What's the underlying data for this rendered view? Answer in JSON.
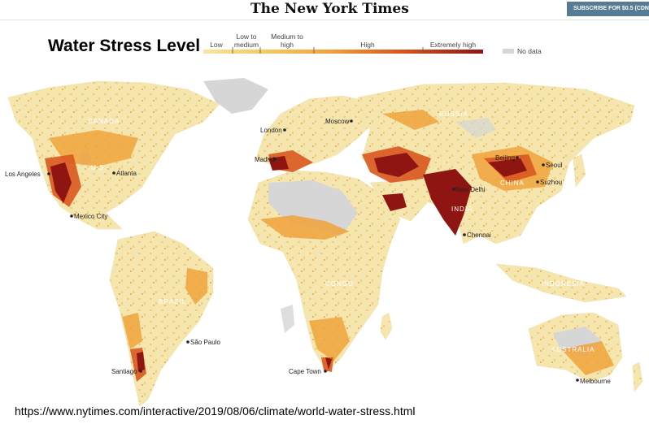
{
  "masthead": {
    "logo": "The New York Times",
    "subscribe": "SUBSCRIBE FOR $0.5 (CDN"
  },
  "title": "Water Stress Level",
  "legend": {
    "categories": [
      {
        "label": "Low",
        "color": "#f6e6a6"
      },
      {
        "label": "Low to medium",
        "color": "#f4cf6a"
      },
      {
        "label": "Medium to high",
        "color": "#f0a33c"
      },
      {
        "label": "High",
        "color": "#d9581f"
      },
      {
        "label": "Extremely high",
        "color": "#8e1512"
      }
    ],
    "no_data": {
      "label": "No data",
      "color": "#d6d6d6"
    }
  },
  "cities": [
    {
      "name": "Los Angeles",
      "lon": -118.2,
      "lat": 34.1
    },
    {
      "name": "Atlanta",
      "lon": -84.4,
      "lat": 33.7
    },
    {
      "name": "Mexico City",
      "lon": -99.1,
      "lat": 19.4
    },
    {
      "name": "São Paulo",
      "lon": -46.6,
      "lat": -23.5
    },
    {
      "name": "Santiago",
      "lon": -70.7,
      "lat": -33.4
    },
    {
      "name": "London",
      "lon": -0.1,
      "lat": 51.5
    },
    {
      "name": "Madrid",
      "lon": -3.7,
      "lat": 40.4
    },
    {
      "name": "Moscow",
      "lon": 37.6,
      "lat": 55.8
    },
    {
      "name": "New Delhi",
      "lon": 77.2,
      "lat": 28.6
    },
    {
      "name": "Chennai",
      "lon": 80.3,
      "lat": 13.1
    },
    {
      "name": "Beijing",
      "lon": 116.4,
      "lat": 39.9
    },
    {
      "name": "Seoul",
      "lon": 127.0,
      "lat": 37.6
    },
    {
      "name": "Suzhou",
      "lon": 120.6,
      "lat": 31.3
    },
    {
      "name": "Cape Town",
      "lon": 18.4,
      "lat": -33.9
    },
    {
      "name": "Melbourne",
      "lon": 145.0,
      "lat": -37.8
    }
  ],
  "regions": [
    "CANADA",
    "U.S.",
    "BRAZIL",
    "RUSSIA",
    "CHINA",
    "INDIA",
    "CONGO",
    "INDONESIA",
    "AUSTRALIA"
  ],
  "source_url": "https://www.nytimes.com/interactive/2019/08/06/climate/world-water-stress.html"
}
